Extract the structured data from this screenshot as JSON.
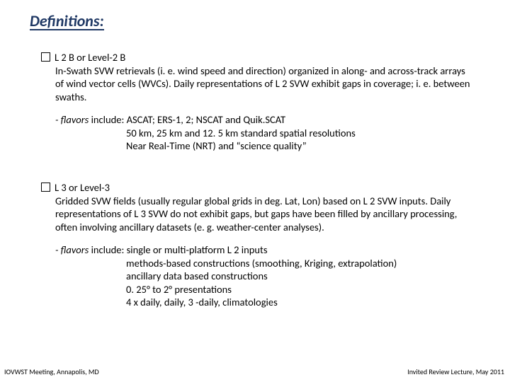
{
  "title": "Definitions:",
  "section1": {
    "heading": "L 2 B or Level-2 B",
    "body": "In-Swath SVW retrievals (i. e. wind speed and direction) organized in along- and across-track arrays of wind vector cells (WVCs).  Daily representations of L 2 SVW exhibit gaps in coverage; i. e. between swaths.",
    "flavors_lead": "- flavors",
    "flavors_rest": " include: ASCAT; ERS-1, 2; NSCAT and Quik.SCAT",
    "flavors_l2": "50 km, 25 km and 12. 5 km standard spatial resolutions",
    "flavors_l3": "Near Real-Time (NRT) and “science quality”"
  },
  "section2": {
    "heading": "L 3 or Level-3",
    "body": "Gridded SVW fields (usually regular global grids in deg. Lat, Lon) based on L 2 SVW inputs.  Daily representations of L 3 SVW do not exhibit gaps, but gaps have been filled by ancillary processing, often involving ancillary datasets (e. g. weather-center analyses).",
    "flavors_lead": "- flavors",
    "flavors_rest": " include: single or multi-platform L 2 inputs",
    "flavors_l2": "methods-based constructions (smoothing, Kriging, extrapolation)",
    "flavors_l3": "ancillary data based constructions",
    "flavors_l4": "0. 25° to 2° presentations",
    "flavors_l5": "4 x daily, daily, 3 -daily, climatologies"
  },
  "footer_left": "IOVWST Meeting, Annapolis, MD",
  "footer_right": "Invited Review Lecture, May 2011",
  "colors": {
    "title": "#1f3864",
    "text": "#000000",
    "background": "#ffffff"
  },
  "fontsizes": {
    "title_pt": 22,
    "body_pt": 14.5,
    "footer_pt": 10
  }
}
